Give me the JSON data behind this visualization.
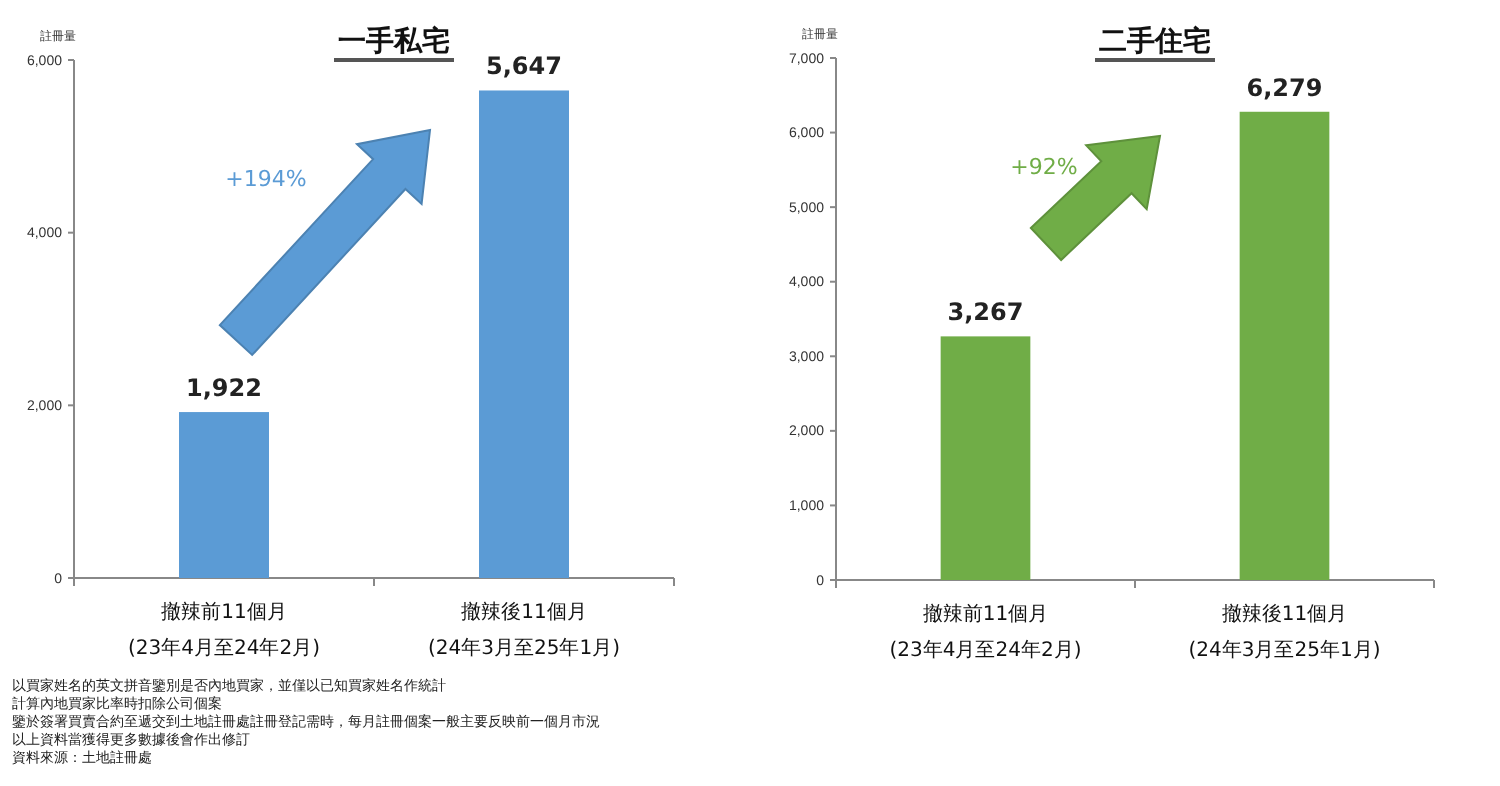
{
  "chart_data": [
    {
      "type": "bar",
      "title": "一手私宅",
      "ylabel": "註冊量",
      "categories": [
        "撤辣前11個月\n(23年4月至24年2月)",
        "撤辣後11個月\n(24年3月至25年1月)"
      ],
      "values": [
        1922,
        5647
      ],
      "value_labels": [
        "1,922",
        "5,647"
      ],
      "color": "#5b9bd5",
      "ylim": [
        0,
        6000
      ],
      "yticks": [
        0,
        {
          "value": 2000,
          "label": "2,000"
        },
        {
          "value": 4000,
          "label": "4,000"
        },
        {
          "value": 6000,
          "label": "6,000"
        }
      ],
      "grid": false,
      "annotations": [
        "+194%",
        "以買家姓名的英文拼音鑒別是否內地買家，並僅以已知買家姓名作統計",
        "計算內地買家比率時扣除公司個案",
        "鑒於簽署買賣合約至遞交到土地註冊處註冊登記需時，每月註冊個案一般主要反映前一個月市況",
        "以上資料當獲得更多數據後會作出修訂",
        "資料來源：土地註冊處"
      ]
    },
    {
      "type": "bar",
      "title": "二手住宅",
      "ylabel": "註冊量",
      "categories": [
        "撤辣前11個月\n(23年4月至24年2月)",
        "撤辣後11個月\n(24年3月至25年1月)"
      ],
      "values": [
        3267,
        6279
      ],
      "value_labels": [
        "3,267",
        "6,279"
      ],
      "color": "#70ad47",
      "ylim": [
        0,
        7000
      ],
      "yticks": [
        0,
        {
          "value": 1000,
          "label": "1,000"
        },
        {
          "value": 2000,
          "label": "2,000"
        },
        {
          "value": 3000,
          "label": "3,000"
        },
        {
          "value": 4000,
          "label": "4,000"
        },
        {
          "value": 5000,
          "label": "5,000"
        },
        {
          "value": 6000,
          "label": "6,000"
        },
        {
          "value": 7000,
          "label": "7,000"
        }
      ],
      "grid": false,
      "annotations": [
        "+92%"
      ]
    }
  ]
}
